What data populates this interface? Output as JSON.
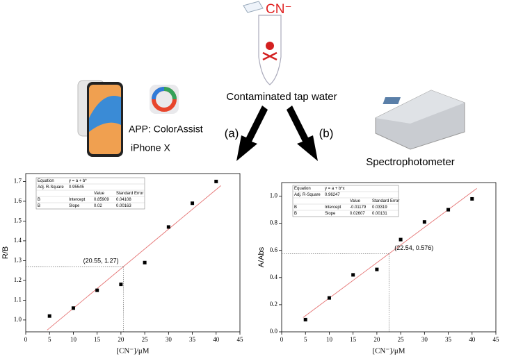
{
  "illustration": {
    "analyte": "CN⁻",
    "sample": "Contaminated tap water",
    "route_a": "(a)",
    "route_b": "(b)",
    "app": "APP: ColorAssist",
    "phone": "iPhone X",
    "instrument": "Spectrophotometer"
  },
  "chart_data": [
    {
      "type": "scatter",
      "x_label": "[CN⁻]/μM",
      "y_label": "R/B",
      "x": [
        5,
        10,
        15,
        20,
        25,
        30,
        35,
        40
      ],
      "values": [
        1.02,
        1.06,
        1.15,
        1.18,
        1.29,
        1.47,
        1.59,
        1.7
      ],
      "color": "#000000",
      "fit_color": "#e57373",
      "xlim": [
        0,
        45
      ],
      "xticks": [
        0,
        5,
        10,
        15,
        20,
        25,
        30,
        35,
        40,
        45
      ],
      "ylim": [
        0.94,
        1.74
      ],
      "yticks": [
        {
          "value": 1,
          "label": "1.0"
        },
        1.1,
        1.2,
        1.3,
        1.4,
        1.5,
        1.6,
        1.7
      ],
      "fit_table": {
        "equation": [
          "Equation",
          "y = a + b*"
        ],
        "r2": [
          "Adj. R-Square",
          0.95545
        ],
        "header": [
          "Value",
          "Standard Error"
        ],
        "intercept": [
          "B",
          "Intercept",
          0.85909,
          0.04108
        ],
        "slope": [
          "B",
          "Slope",
          0.02,
          0.00163
        ]
      },
      "marker": {
        "x": 20.55,
        "y": 1.27,
        "label": "(20.55, 1.27)"
      }
    },
    {
      "type": "scatter",
      "x_label": "[CN⁻]/μM",
      "y_label": "A/Abs",
      "x": [
        5,
        10,
        15,
        20,
        25,
        30,
        35,
        40
      ],
      "values": [
        0.09,
        0.25,
        0.42,
        0.46,
        0.68,
        0.81,
        0.9,
        0.98
      ],
      "color": "#000000",
      "fit_color": "#e57373",
      "xlim": [
        0,
        45
      ],
      "xticks": [
        0,
        5,
        10,
        15,
        20,
        25,
        30,
        35,
        40,
        45
      ],
      "ylim": [
        0,
        1.1
      ],
      "yticks": [
        {
          "value": 0,
          "label": "0.0"
        },
        0.2,
        0.4,
        0.6,
        0.8,
        {
          "value": 1,
          "label": "1.0"
        }
      ],
      "fit_table": {
        "equation": [
          "Equation",
          "y = a + b*x"
        ],
        "r2": [
          "Adj. R-Square",
          0.96247
        ],
        "header": [
          "Value",
          "Standard Error"
        ],
        "intercept": [
          "B",
          "Intercept",
          -0.01179,
          0.03319
        ],
        "slope": [
          "B",
          "Slope",
          0.02607,
          0.00131
        ]
      },
      "marker": {
        "x": 22.54,
        "y": 0.576,
        "label": "(22.54, 0.576)"
      }
    }
  ]
}
